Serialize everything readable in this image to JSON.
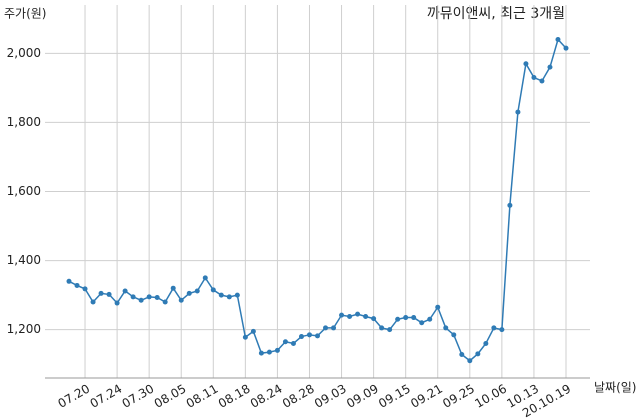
{
  "chart_data": {
    "type": "line",
    "title": "까뮤이앤씨, 최근 3개월",
    "y_label": "주가(원)",
    "x_label": "날짜(일)",
    "color": "#2f7bb5",
    "grid": true,
    "categories": [
      null,
      null,
      "07.20",
      null,
      null,
      null,
      "07.24",
      null,
      null,
      null,
      "07.30",
      null,
      null,
      null,
      "08.05",
      null,
      null,
      null,
      "08.11",
      null,
      null,
      null,
      "08.18",
      null,
      null,
      null,
      "08.24",
      null,
      null,
      null,
      "08.28",
      null,
      null,
      null,
      "09.03",
      null,
      null,
      null,
      "09.09",
      null,
      null,
      null,
      "09.15",
      null,
      null,
      null,
      "09.21",
      null,
      null,
      null,
      "09.25",
      null,
      null,
      null,
      "10.06",
      null,
      null,
      null,
      "10.13",
      null,
      null,
      null,
      "20.10.19"
    ],
    "values": [
      1340,
      1328,
      1318,
      1280,
      1305,
      1302,
      1277,
      1312,
      1295,
      1285,
      1295,
      1293,
      1280,
      1320,
      1285,
      1305,
      1312,
      1350,
      1315,
      1300,
      1295,
      1300,
      1178,
      1195,
      1132,
      1135,
      1140,
      1165,
      1160,
      1180,
      1185,
      1182,
      1205,
      1205,
      1242,
      1238,
      1245,
      1238,
      1232,
      1205,
      1200,
      1230,
      1235,
      1235,
      1220,
      1230,
      1265,
      1205,
      1185,
      1128,
      1110,
      1130,
      1160,
      1205,
      1200,
      1560,
      1830,
      1970,
      1930,
      1920,
      1960,
      2040,
      2015
    ],
    "ylim": [
      1060,
      2140
    ],
    "yticks": [
      {
        "value": 1200,
        "label": "1,200"
      },
      {
        "value": 1400,
        "label": "1,400"
      },
      {
        "value": 1600,
        "label": "1,600"
      },
      {
        "value": 1800,
        "label": "1,800"
      },
      {
        "value": 2000,
        "label": "2,000"
      }
    ]
  }
}
